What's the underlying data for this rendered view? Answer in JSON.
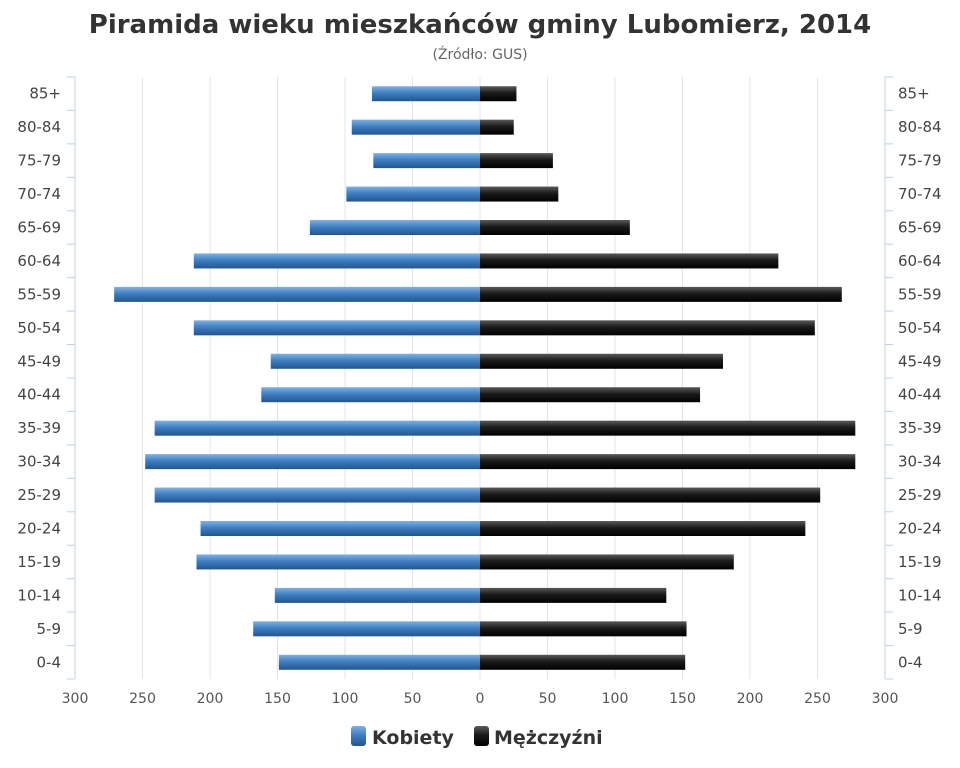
{
  "chart_data": {
    "type": "bar",
    "orientation": "horizontal",
    "layout": "population-pyramid",
    "title": "Piramida wieku mieszkańców gminy Lubomierz, 2014",
    "subtitle": "(Źródło: GUS)",
    "categories": [
      "85+",
      "80-84",
      "75-79",
      "70-74",
      "65-69",
      "60-64",
      "55-59",
      "50-54",
      "45-49",
      "40-44",
      "35-39",
      "30-34",
      "25-29",
      "20-24",
      "15-19",
      "10-14",
      "5-9",
      "0-4"
    ],
    "series": [
      {
        "name": "Kobiety",
        "side": "left",
        "color": "#3c78b8",
        "values": [
          80,
          95,
          79,
          99,
          126,
          212,
          271,
          212,
          155,
          162,
          241,
          248,
          241,
          207,
          210,
          152,
          168,
          149
        ]
      },
      {
        "name": "Mężczyźni",
        "side": "right",
        "color": "#111111",
        "values": [
          27,
          25,
          54,
          58,
          111,
          221,
          268,
          248,
          180,
          163,
          278,
          278,
          252,
          241,
          188,
          138,
          153,
          152
        ]
      }
    ],
    "xlim": [
      -300,
      300
    ],
    "x_ticks": [
      -300,
      -250,
      -200,
      -150,
      -100,
      -50,
      0,
      50,
      100,
      150,
      200,
      250,
      300
    ],
    "x_tick_labels": [
      "300",
      "250",
      "200",
      "150",
      "100",
      "50",
      "0",
      "50",
      "100",
      "150",
      "200",
      "250",
      "300"
    ],
    "grid": true,
    "legend_position": "bottom-center"
  }
}
